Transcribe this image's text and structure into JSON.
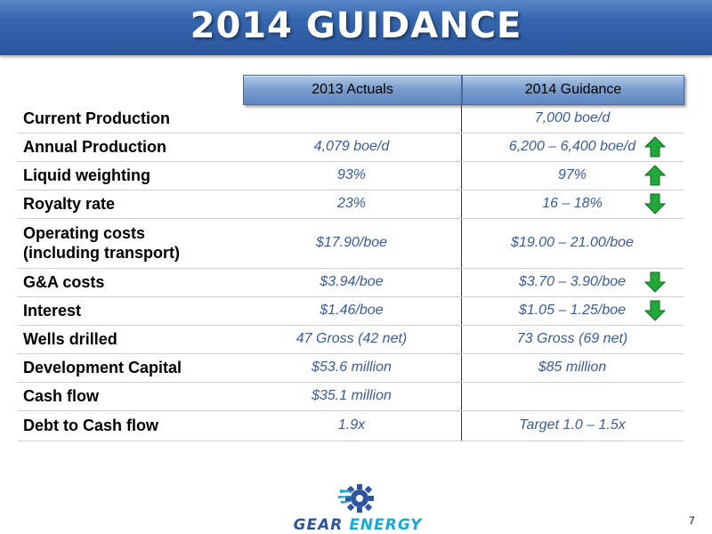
{
  "slide": {
    "title": "2014 GUIDANCE",
    "page_number": "7"
  },
  "table": {
    "headers": {
      "col_2013": "2013 Actuals",
      "col_2014": "2014 Guidance"
    },
    "rows": [
      {
        "label": "Current Production",
        "actual_2013": "",
        "guidance_2014": "7,000 boe/d",
        "trend": ""
      },
      {
        "label": "Annual Production",
        "actual_2013": "4,079 boe/d",
        "guidance_2014": "6,200 – 6,400 boe/d",
        "trend": "up"
      },
      {
        "label": "Liquid weighting",
        "actual_2013": "93%",
        "guidance_2014": "97%",
        "trend": "up"
      },
      {
        "label": "Royalty rate",
        "actual_2013": "23%",
        "guidance_2014": "16 – 18%",
        "trend": "down"
      },
      {
        "label": "Operating costs (including transport)",
        "label_line1": "Operating costs",
        "label_line2": "(including transport)",
        "actual_2013": "$17.90/boe",
        "guidance_2014": "$19.00 – 21.00/boe",
        "trend": ""
      },
      {
        "label": "G&A costs",
        "actual_2013": "$3.94/boe",
        "guidance_2014": "$3.70 – 3.90/boe",
        "trend": "down"
      },
      {
        "label": "Interest",
        "actual_2013": "$1.46/boe",
        "guidance_2014": "$1.05 – 1.25/boe",
        "trend": "down"
      },
      {
        "label": "Wells drilled",
        "actual_2013": "47 Gross (42 net)",
        "guidance_2014": "73 Gross (69 net)",
        "trend": ""
      },
      {
        "label": "Development Capital",
        "actual_2013": "$53.6 million",
        "guidance_2014": "$85 million",
        "trend": ""
      },
      {
        "label": "Cash flow",
        "actual_2013": "$35.1 million",
        "guidance_2014": "",
        "trend": ""
      },
      {
        "label": "Debt to Cash flow",
        "actual_2013": "1.9x",
        "guidance_2014": "Target 1.0 – 1.5x",
        "trend": ""
      }
    ]
  },
  "logo": {
    "word1": "GEAR",
    "word2": "ENERGY"
  },
  "colors": {
    "up_arrow": "#22a83a",
    "down_arrow": "#22a83a",
    "value_text": "#3a5a9a",
    "title_bar": "#2f5ea6"
  }
}
